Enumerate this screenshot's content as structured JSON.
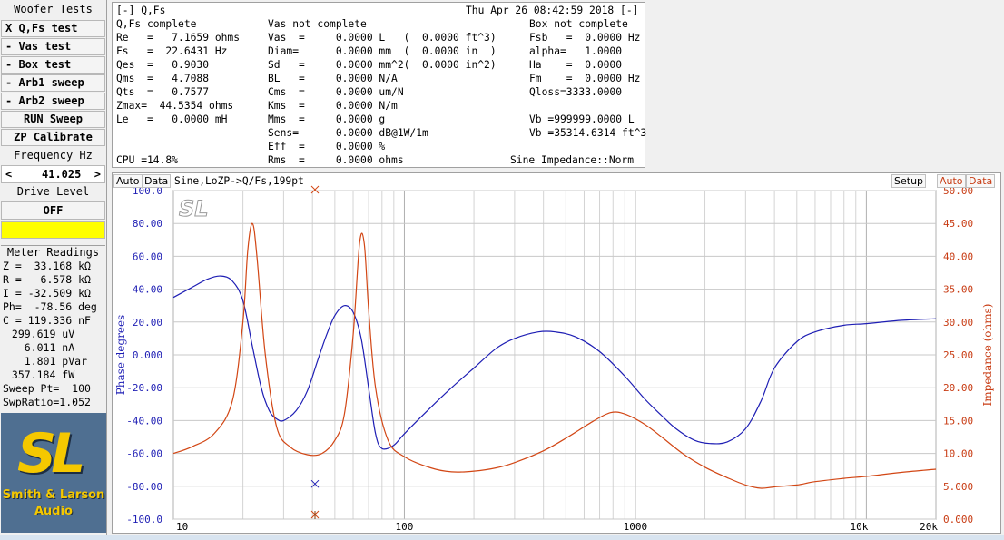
{
  "sidebar": {
    "title": "Woofer Tests",
    "buttons": [
      "X Q,Fs test",
      "- Vas test",
      "- Box test",
      "- Arb1 sweep",
      "- Arb2 sweep",
      "RUN Sweep",
      "ZP Calibrate"
    ],
    "frequency_label": "Frequency Hz",
    "frequency_left": "<",
    "frequency_value": "41.025",
    "frequency_right": ">",
    "drive_label": "Drive Level",
    "drive_value": "OFF",
    "drive_color": "#ffff00",
    "meter_title": "Meter Readings",
    "meter_rows": [
      "Z =  33.168 kΩ",
      "R =   6.578 kΩ",
      "I = -32.509 kΩ",
      "Ph=  -78.56 deg",
      "C = 119.336 nF",
      " 299.619 uV",
      "   6.011 nA",
      "   1.801 pVar",
      " 357.184 fW",
      "Sweep Pt=  100",
      "SwpRatio=1.052"
    ],
    "logo_text": "Smith & Larson",
    "logo_sub": "Audio"
  },
  "info": {
    "header_left": "[-] Q,Fs",
    "header_right": "Thu Apr 26 08:42:59 2018 [-]",
    "col1_title": "Q,Fs complete",
    "col2_title": "Vas not complete",
    "col3_title": "Box not complete",
    "col1": [
      "Re   =   7.1659 ohms",
      "Fs   =  22.6431 Hz",
      "Qes  =   0.9030",
      "Qms  =   4.7088",
      "Qts  =   0.7577",
      "Zmax=  44.5354 ohms",
      "Le   =   0.0000 mH"
    ],
    "col2": [
      "Vas  =     0.0000 L   (  0.0000 ft^3)",
      "Diam=      0.0000 mm  (  0.0000 in  )",
      "Sd   =     0.0000 mm^2(  0.0000 in^2)",
      "BL   =     0.0000 N/A",
      "Cms  =     0.0000 um/N",
      "Kms  =     0.0000 N/m",
      "Mms  =     0.0000 g",
      "Sens=      0.0000 dB@1W/1m",
      "Eff  =     0.0000 %",
      "Rms  =     0.0000 ohms"
    ],
    "col3": [
      "Fsb   =  0.0000 Hz",
      "alpha=   1.0000",
      "Ha    =  0.0000",
      "Fm    =  0.0000 Hz",
      "Qloss=3333.0000",
      "",
      "Vb =999999.0000 L",
      "Vb =35314.6314 ft^3"
    ],
    "cpu": "CPU =14.8%",
    "mode": "Sine Impedance::Norm"
  },
  "graph": {
    "left_auto": "Auto",
    "left_data": "Data",
    "title": "Sine,LoZP->Q/Fs,199pt",
    "setup": "Setup",
    "right_auto": "Auto",
    "right_data": "Data",
    "left_axis_label": "Phase degrees",
    "right_axis_label": "Impedance (ohms)",
    "phase_color": "#1e1eb4",
    "impedance_color": "#d24614",
    "right_label_color": "#c83c14"
  },
  "chart_data": {
    "type": "line",
    "x_scale": "log",
    "xlim": [
      10,
      20000
    ],
    "x_tick_labels": [
      "10",
      "100",
      "1000",
      "10k",
      "20k"
    ],
    "left_axis": {
      "label": "Phase degrees",
      "ylim": [
        -100,
        100
      ],
      "tick_labels": [
        "100.0",
        "80.00",
        "60.00",
        "40.00",
        "20.00",
        "0.000",
        "-20.00",
        "-40.00",
        "-60.00",
        "-80.00",
        "-100.0"
      ]
    },
    "right_axis": {
      "label": "Impedance (ohms)",
      "ylim": [
        0,
        50
      ],
      "tick_labels": [
        "50.00",
        "45.00",
        "40.00",
        "35.00",
        "30.00",
        "25.00",
        "20.00",
        "15.00",
        "10.00",
        "5.000",
        "0.000"
      ]
    },
    "cursor_x": 41.025,
    "series": [
      {
        "axis": "left",
        "points": [
          [
            10,
            35
          ],
          [
            12,
            41
          ],
          [
            14,
            46
          ],
          [
            16,
            48
          ],
          [
            18,
            45
          ],
          [
            20,
            33
          ],
          [
            22,
            5
          ],
          [
            24,
            -20
          ],
          [
            26,
            -34
          ],
          [
            28,
            -39
          ],
          [
            30,
            -40
          ],
          [
            34,
            -34
          ],
          [
            38,
            -22
          ],
          [
            42,
            -4
          ],
          [
            46,
            12
          ],
          [
            50,
            24
          ],
          [
            55,
            30
          ],
          [
            60,
            26
          ],
          [
            65,
            10
          ],
          [
            70,
            -20
          ],
          [
            75,
            -48
          ],
          [
            80,
            -57
          ],
          [
            90,
            -55
          ],
          [
            100,
            -48
          ],
          [
            130,
            -32
          ],
          [
            160,
            -20
          ],
          [
            200,
            -8
          ],
          [
            250,
            4
          ],
          [
            300,
            10
          ],
          [
            380,
            14
          ],
          [
            450,
            14
          ],
          [
            550,
            11
          ],
          [
            700,
            2
          ],
          [
            900,
            -13
          ],
          [
            1100,
            -27
          ],
          [
            1300,
            -37
          ],
          [
            1500,
            -45
          ],
          [
            1800,
            -52
          ],
          [
            2100,
            -54
          ],
          [
            2500,
            -53
          ],
          [
            3000,
            -45
          ],
          [
            3500,
            -28
          ],
          [
            4000,
            -8
          ],
          [
            5000,
            8
          ],
          [
            6000,
            14
          ],
          [
            8000,
            18
          ],
          [
            10000,
            19
          ],
          [
            14000,
            21
          ],
          [
            20000,
            22
          ]
        ]
      },
      {
        "axis": "right",
        "points": [
          [
            10,
            10
          ],
          [
            12,
            11
          ],
          [
            15,
            13
          ],
          [
            18,
            18
          ],
          [
            20,
            30
          ],
          [
            21,
            41
          ],
          [
            22,
            45
          ],
          [
            23,
            40
          ],
          [
            25,
            25
          ],
          [
            28,
            14
          ],
          [
            32,
            11
          ],
          [
            38,
            9.8
          ],
          [
            44,
            10
          ],
          [
            50,
            12
          ],
          [
            55,
            16
          ],
          [
            60,
            28
          ],
          [
            64,
            42
          ],
          [
            67,
            42
          ],
          [
            70,
            32
          ],
          [
            75,
            20
          ],
          [
            85,
            12
          ],
          [
            100,
            9.5
          ],
          [
            130,
            7.8
          ],
          [
            160,
            7.2
          ],
          [
            200,
            7.3
          ],
          [
            250,
            7.8
          ],
          [
            300,
            8.6
          ],
          [
            400,
            10.4
          ],
          [
            500,
            12.3
          ],
          [
            650,
            14.8
          ],
          [
            780,
            16.2
          ],
          [
            900,
            16
          ],
          [
            1100,
            14.4
          ],
          [
            1300,
            12.5
          ],
          [
            1600,
            10
          ],
          [
            2000,
            7.9
          ],
          [
            2500,
            6.3
          ],
          [
            3000,
            5.2
          ],
          [
            3500,
            4.7
          ],
          [
            4000,
            4.9
          ],
          [
            5000,
            5.2
          ],
          [
            6000,
            5.7
          ],
          [
            8000,
            6.2
          ],
          [
            10000,
            6.5
          ],
          [
            14000,
            7.1
          ],
          [
            20000,
            7.6
          ]
        ]
      }
    ]
  }
}
